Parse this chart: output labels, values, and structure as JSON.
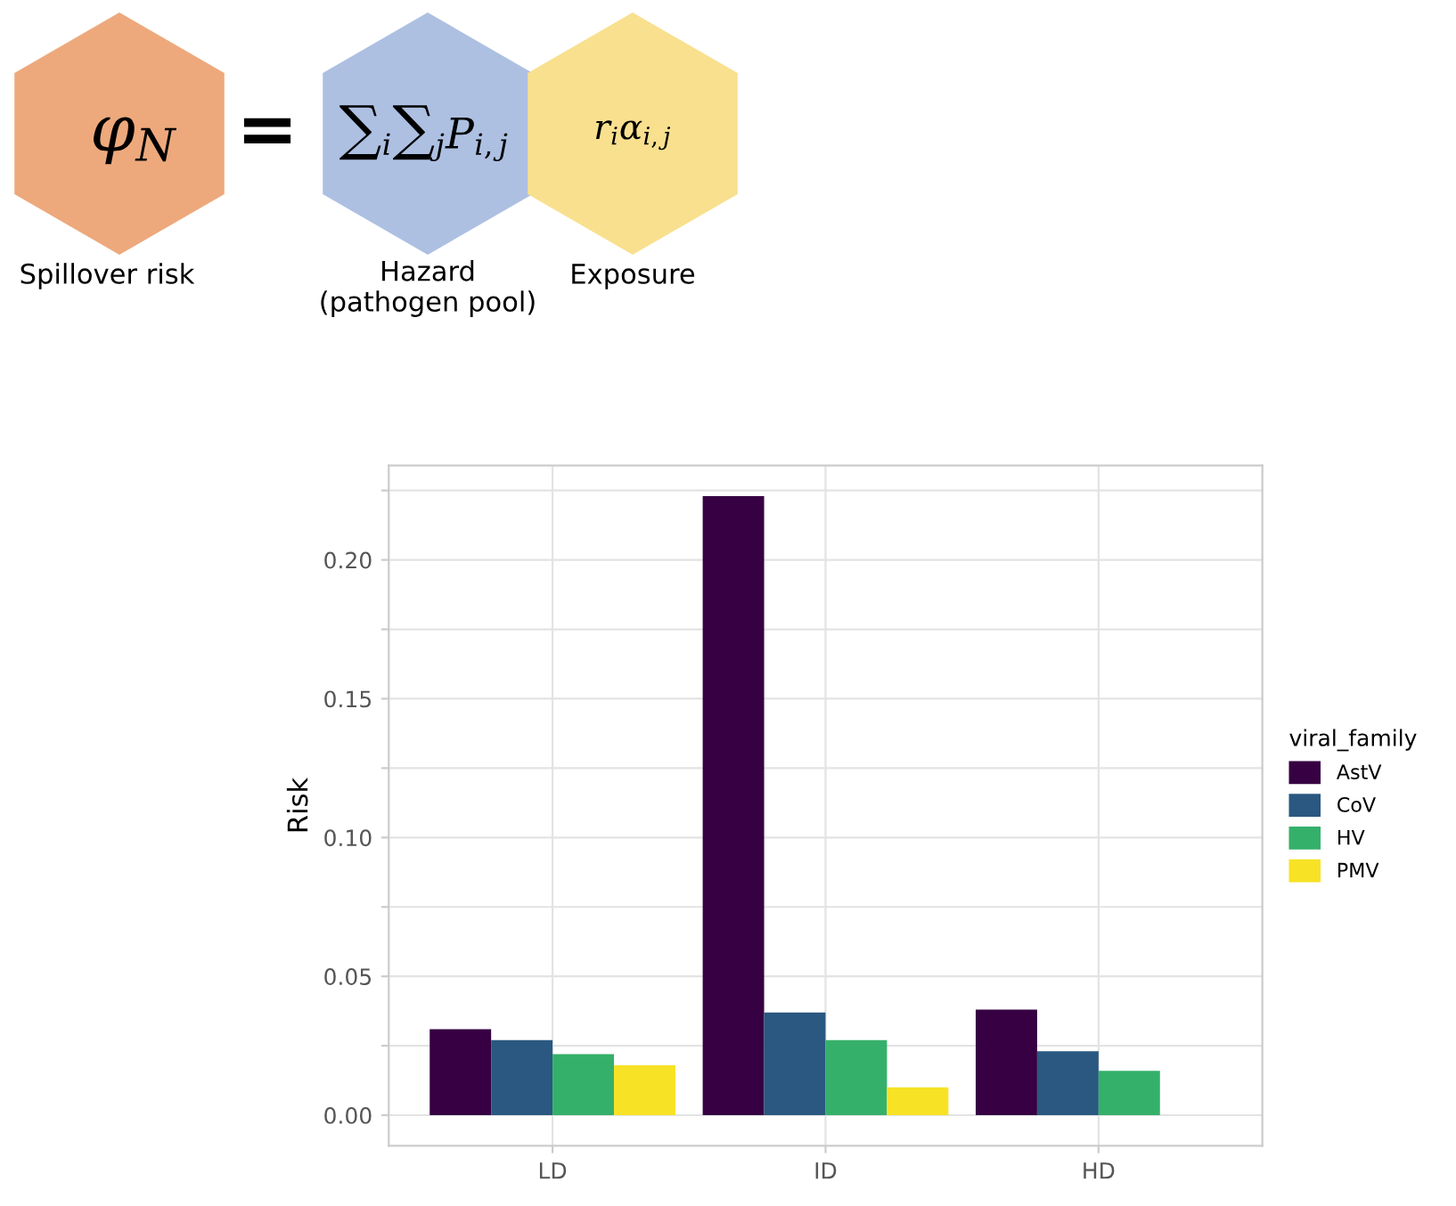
{
  "chart_data": {
    "type": "bar",
    "ylabel": "Risk",
    "legend_title": "viral_family",
    "categories": [
      "LD",
      "ID",
      "HD"
    ],
    "series": [
      {
        "name": "AstV",
        "color": "#360042",
        "values": [
          0.031,
          0.223,
          0.038
        ]
      },
      {
        "name": "CoV",
        "color": "#2a5880",
        "values": [
          0.027,
          0.037,
          0.023
        ]
      },
      {
        "name": "HV",
        "color": "#35b06a",
        "values": [
          0.022,
          0.027,
          0.016
        ]
      },
      {
        "name": "PMV",
        "color": "#f7e225",
        "values": [
          0.018,
          0.01,
          null
        ]
      }
    ],
    "ylim": [
      -0.011,
      0.234
    ],
    "yticks": [
      {
        "value": 0.0,
        "label": "0.00"
      },
      {
        "value": 0.025,
        "label": null
      },
      {
        "value": 0.05,
        "label": "0.05"
      },
      {
        "value": 0.075,
        "label": null
      },
      {
        "value": 0.1,
        "label": "0.10"
      },
      {
        "value": 0.125,
        "label": null
      },
      {
        "value": 0.15,
        "label": "0.15"
      },
      {
        "value": 0.175,
        "label": null
      },
      {
        "value": 0.2,
        "label": "0.20"
      },
      {
        "value": 0.225,
        "label": null
      }
    ],
    "grid": true,
    "legend": "right",
    "annotations": [
      "φ$_{N}$",
      "=",
      "∑$_{i}$∑$_{j}$P$_{i,j}$",
      "r$_{i}$α$_{i,j}$",
      "Spillover risk",
      "Hazard\n(pathogen pool)",
      "Exposure"
    ]
  }
}
